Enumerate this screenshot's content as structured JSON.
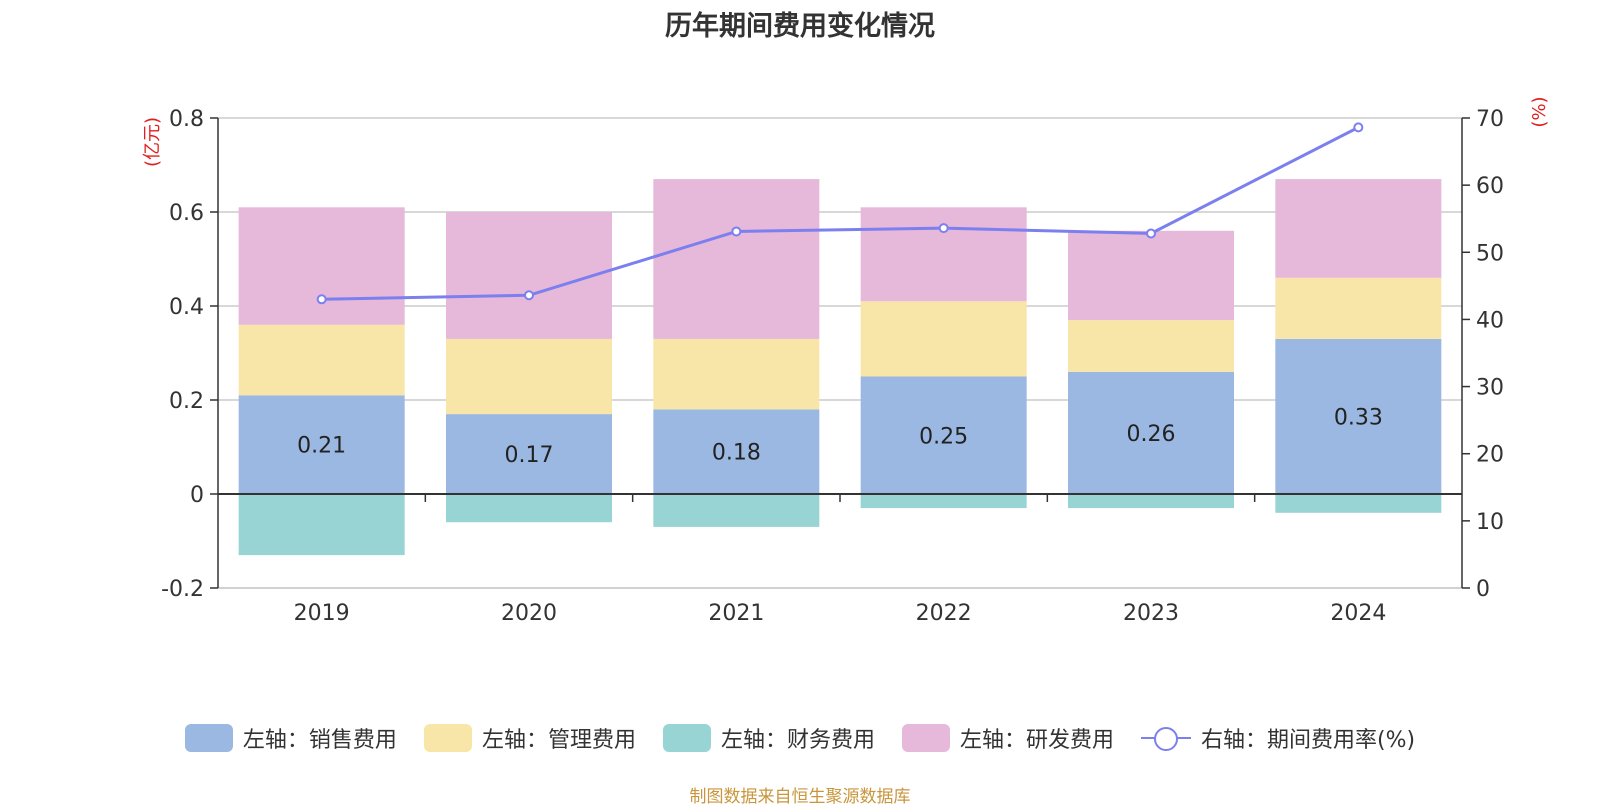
{
  "chart_data": {
    "type": "bar",
    "title": "历年期间费用变化情况",
    "categories": [
      "2019",
      "2020",
      "2021",
      "2022",
      "2023",
      "2024"
    ],
    "stacked": true,
    "series": [
      {
        "name": "左轴：销售费用",
        "axis": "left",
        "color": "#9bb8e2",
        "values": [
          0.21,
          0.17,
          0.18,
          0.25,
          0.26,
          0.33
        ],
        "show_labels": true
      },
      {
        "name": "左轴：管理费用",
        "axis": "left",
        "color": "#f8e6a8",
        "values": [
          0.15,
          0.16,
          0.15,
          0.16,
          0.11,
          0.13
        ]
      },
      {
        "name": "左轴：财务费用",
        "axis": "left",
        "color": "#98d4d4",
        "values": [
          -0.13,
          -0.06,
          -0.07,
          -0.03,
          -0.03,
          -0.04
        ]
      },
      {
        "name": "左轴：研发费用",
        "axis": "left",
        "color": "#e6b8da",
        "values": [
          0.25,
          0.27,
          0.34,
          0.2,
          0.19,
          0.21
        ]
      }
    ],
    "line_series": {
      "name": "右轴：期间费用率(%)",
      "axis": "right",
      "color": "#7b80ee",
      "values": [
        43.0,
        43.6,
        53.1,
        53.6,
        52.8,
        68.6
      ]
    },
    "left_axis": {
      "label": "(亿元)",
      "ylim": [
        -0.2,
        0.8
      ],
      "ticks": [
        "-0.2",
        "0",
        "0.2",
        "0.4",
        "0.6",
        "0.8"
      ]
    },
    "right_axis": {
      "label": "(%)",
      "ylim": [
        0,
        70
      ],
      "ticks": [
        "0",
        "10",
        "20",
        "30",
        "40",
        "50",
        "60",
        "70"
      ]
    },
    "grid": true,
    "legend_position": "bottom"
  },
  "source_text": "制图数据来自恒生聚源数据库"
}
